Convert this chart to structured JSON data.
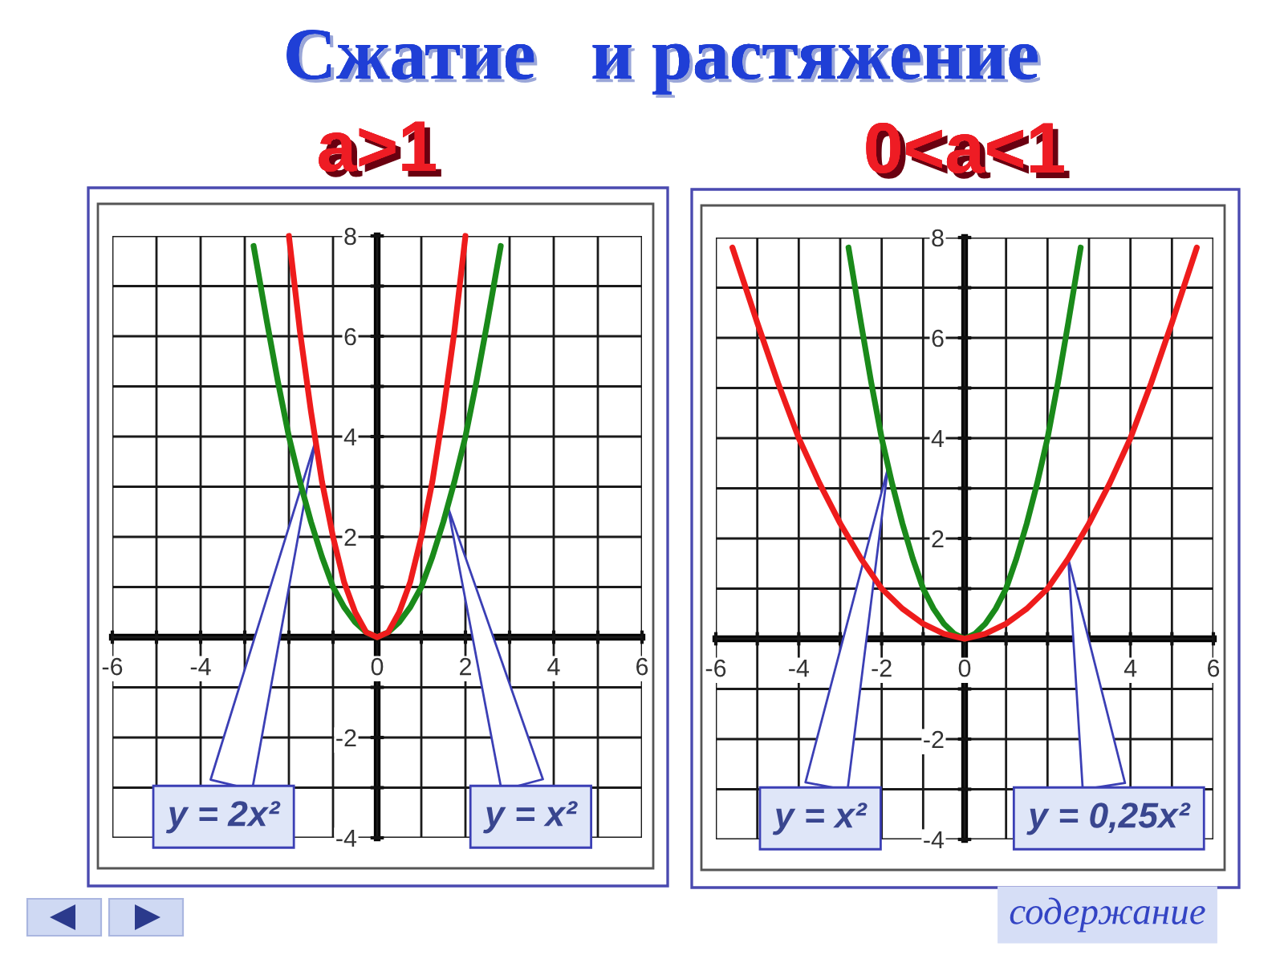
{
  "chart_data": [
    {
      "type": "line",
      "title": "Сжатие   и растяжение",
      "subtitle": "a>1",
      "xlim": [
        -6,
        6
      ],
      "ylim": [
        -4,
        8
      ],
      "xticks": [
        -6,
        {
          "value": -5,
          "label": null
        },
        -4,
        {
          "value": -3,
          "label": null
        },
        {
          "value": -2,
          "label": null
        },
        {
          "value": -1,
          "label": null
        },
        0,
        {
          "value": 1,
          "label": null
        },
        2,
        {
          "value": 3,
          "label": null
        },
        4,
        {
          "value": 5,
          "label": null
        },
        6
      ],
      "yticks": [
        -4,
        {
          "value": -3,
          "label": null
        },
        -2,
        {
          "value": -1,
          "label": null
        },
        {
          "value": 0,
          "label": null
        },
        {
          "value": 1,
          "label": null
        },
        2,
        {
          "value": 3,
          "label": null
        },
        4,
        {
          "value": 5,
          "label": null
        },
        6,
        {
          "value": 7,
          "label": null
        },
        8
      ],
      "grid": true,
      "series": [
        {
          "color": "#1a8a1a",
          "x": [
            -2.8,
            -2.5,
            -2.25,
            -2,
            -1.75,
            -1.5,
            -1.25,
            -1,
            -0.75,
            -0.5,
            -0.25,
            0,
            0.25,
            0.5,
            0.75,
            1,
            1.25,
            1.5,
            1.75,
            2,
            2.25,
            2.5,
            2.8
          ],
          "values": [
            7.8,
            6.3,
            5.1,
            4,
            3.1,
            2.3,
            1.6,
            1,
            0.6,
            0.3,
            0.1,
            0,
            0.1,
            0.3,
            0.6,
            1,
            1.6,
            2.3,
            3.1,
            4,
            5.1,
            6.3,
            7.8
          ]
        },
        {
          "color": "#ee1c1c",
          "x": [
            -2,
            -1.75,
            -1.5,
            -1.25,
            -1,
            -0.75,
            -0.5,
            -0.25,
            0,
            0.25,
            0.5,
            0.75,
            1,
            1.25,
            1.5,
            1.75,
            2
          ],
          "values": [
            8,
            6.1,
            4.5,
            3.1,
            2,
            1.1,
            0.5,
            0.1,
            0,
            0.1,
            0.5,
            1.1,
            2,
            3.1,
            4.5,
            6.1,
            8
          ]
        }
      ],
      "annotations": [
        {
          "text": "y = 2x²",
          "x": -1.4,
          "y": 3.9
        },
        {
          "text": "y = x²",
          "x": 1.6,
          "y": 2.6
        }
      ]
    },
    {
      "type": "line",
      "subtitle": "0<a<1",
      "xlim": [
        -6,
        6
      ],
      "ylim": [
        -4,
        8
      ],
      "xticks": [
        -6,
        {
          "value": -5,
          "label": null
        },
        -4,
        {
          "value": -3,
          "label": null
        },
        -2,
        {
          "value": -1,
          "label": null
        },
        0,
        {
          "value": 1,
          "label": null
        },
        {
          "value": 2,
          "label": null
        },
        {
          "value": 3,
          "label": null
        },
        4,
        {
          "value": 5,
          "label": null
        },
        6
      ],
      "yticks": [
        -4,
        {
          "value": -3,
          "label": null
        },
        -2,
        {
          "value": -1,
          "label": null
        },
        {
          "value": 0,
          "label": null
        },
        {
          "value": 1,
          "label": null
        },
        2,
        {
          "value": 3,
          "label": null
        },
        4,
        {
          "value": 5,
          "label": null
        },
        6,
        {
          "value": 7,
          "label": null
        },
        8
      ],
      "grid": true,
      "series": [
        {
          "color": "#1a8a1a",
          "x": [
            -2.8,
            -2.5,
            -2.25,
            -2,
            -1.75,
            -1.5,
            -1.25,
            -1,
            -0.75,
            -0.5,
            -0.25,
            0,
            0.25,
            0.5,
            0.75,
            1,
            1.25,
            1.5,
            1.75,
            2,
            2.25,
            2.5,
            2.8
          ],
          "values": [
            7.8,
            6.3,
            5.1,
            4,
            3.1,
            2.3,
            1.6,
            1,
            0.6,
            0.3,
            0.1,
            0,
            0.1,
            0.3,
            0.6,
            1,
            1.6,
            2.3,
            3.1,
            4,
            5.1,
            6.3,
            7.8
          ]
        },
        {
          "color": "#ee1c1c",
          "x": [
            -5.6,
            -5,
            -4.5,
            -4,
            -3.5,
            -3,
            -2.5,
            -2,
            -1.5,
            -1,
            -0.5,
            0,
            0.5,
            1,
            1.5,
            2,
            2.5,
            3,
            3.5,
            4,
            4.5,
            5,
            5.6
          ],
          "values": [
            7.8,
            6.3,
            5.1,
            4,
            3.1,
            2.3,
            1.6,
            1,
            0.6,
            0.3,
            0.1,
            0,
            0.1,
            0.3,
            0.6,
            1,
            1.6,
            2.3,
            3.1,
            4,
            5.1,
            6.3,
            7.8
          ]
        }
      ],
      "annotations": [
        {
          "text": "y = x²",
          "x": -1.85,
          "y": 3.4
        },
        {
          "text": "y = 0,25x²",
          "x": 2.5,
          "y": 1.6
        },
        "содержание"
      ]
    }
  ]
}
